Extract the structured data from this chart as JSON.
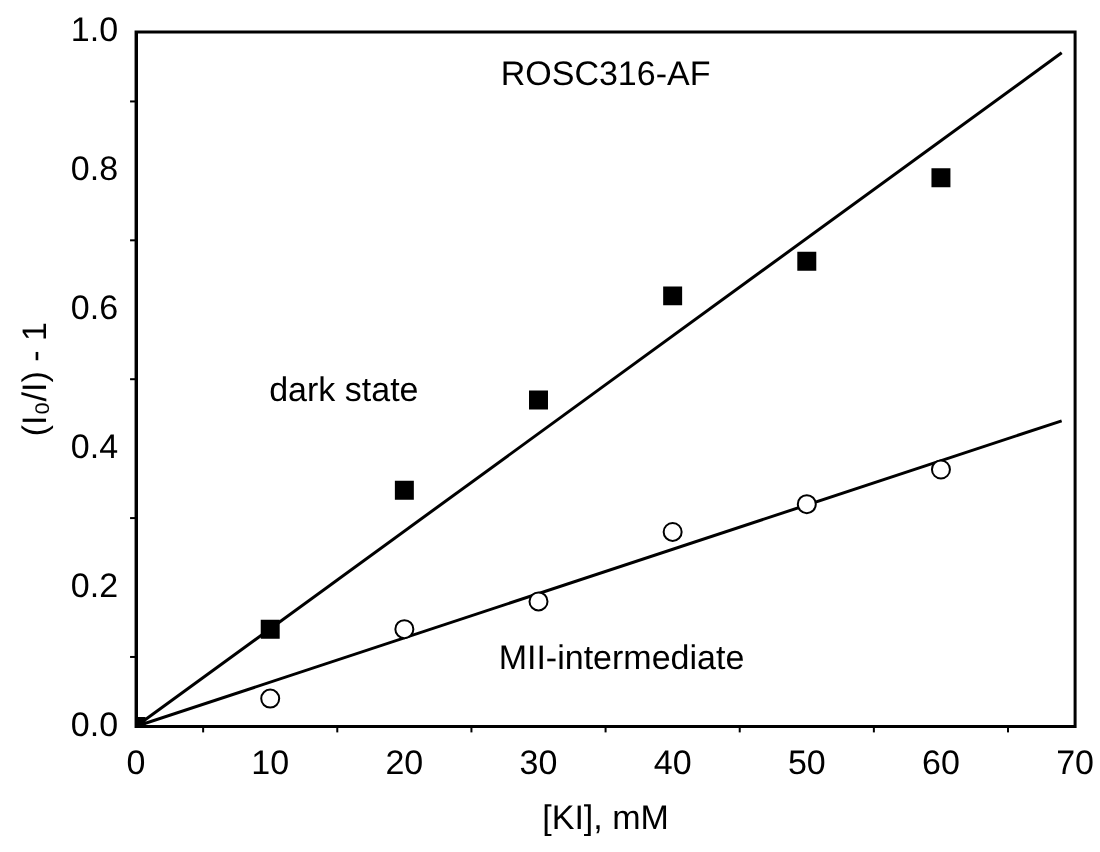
{
  "chart_data": {
    "type": "scatter",
    "title": "ROSC316-AF",
    "xlabel": "[KI], mM",
    "ylabel": "(I₀/I) - 1",
    "xlim": [
      0,
      70
    ],
    "xticks": [
      0,
      10,
      20,
      30,
      40,
      50,
      60,
      70
    ],
    "ylim": [
      0,
      1
    ],
    "yticks": [
      {
        "value": 0,
        "label": "0.0"
      },
      0.2,
      0.4,
      0.6,
      0.8,
      {
        "value": 1,
        "label": "1.0"
      }
    ],
    "grid": false,
    "legend": false,
    "series": [
      {
        "name": "dark state",
        "marker": "square",
        "color": "#000000",
        "x": [
          0,
          10,
          20,
          30,
          40,
          50,
          60
        ],
        "values": [
          0,
          0.14,
          0.34,
          0.47,
          0.62,
          0.67,
          0.79
        ]
      },
      {
        "name": "MII-intermediate",
        "marker": "circle",
        "color": "#000000",
        "x": [
          10,
          20,
          30,
          40,
          50,
          60
        ],
        "values": [
          0.04,
          0.14,
          0.18,
          0.28,
          0.32,
          0.37
        ]
      },
      {
        "type": "line",
        "marker": "none",
        "line_style": "solid",
        "color": "#000000",
        "x": [
          0,
          69
        ],
        "values": [
          0,
          0.97
        ]
      },
      {
        "type": "line",
        "marker": "none",
        "line_style": "solid",
        "color": "#000000",
        "x": [
          0,
          69
        ],
        "values": [
          0,
          0.44
        ]
      }
    ]
  }
}
